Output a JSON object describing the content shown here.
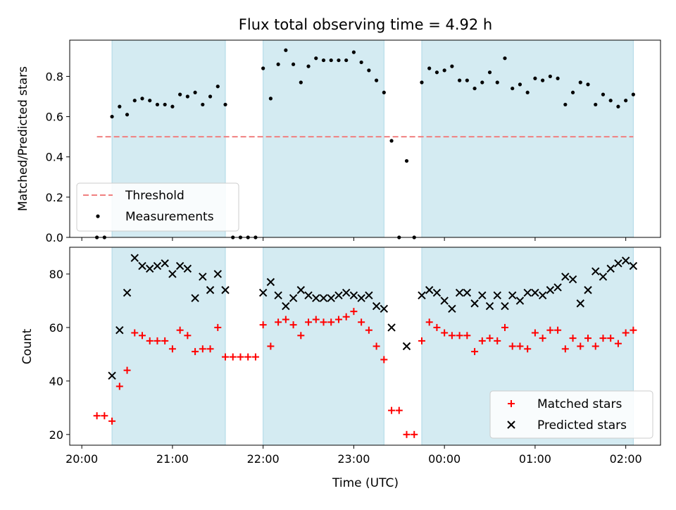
{
  "figure": {
    "title": "Flux total observing time = 4.92 h",
    "xlabel": "Time (UTC)",
    "x_tick_labels": [
      "20:00",
      "21:00",
      "22:00",
      "23:00",
      "00:00",
      "01:00",
      "02:00"
    ]
  },
  "colors": {
    "shade": "#add8e6",
    "threshold": "#f08080",
    "measurement": "#000000",
    "matched": "#ff0000",
    "predicted": "#000000"
  },
  "chart_data": [
    {
      "type": "scatter",
      "ylabel": "Matched/Predicted stars",
      "xlim": [
        "19:52",
        "02:23"
      ],
      "ylim": [
        0,
        0.98
      ],
      "y_ticks": [
        "0.0",
        "0.2",
        "0.4",
        "0.6",
        "0.8"
      ],
      "legend_position": "lower-left",
      "shaded_intervals": [
        [
          "20:20",
          "21:35"
        ],
        [
          "22:00",
          "23:20"
        ],
        [
          "23:45",
          "02:05"
        ]
      ],
      "threshold": {
        "name": "Threshold",
        "value": 0.5,
        "x_range": [
          "20:10",
          "02:05"
        ]
      },
      "series": [
        {
          "name": "Measurements",
          "x": [
            "20:10",
            "20:15",
            "20:20",
            "20:25",
            "20:30",
            "20:35",
            "20:40",
            "20:45",
            "20:50",
            "20:55",
            "21:00",
            "21:05",
            "21:10",
            "21:15",
            "21:20",
            "21:25",
            "21:30",
            "21:35",
            "21:40",
            "21:45",
            "21:50",
            "21:55",
            "22:00",
            "22:05",
            "22:10",
            "22:15",
            "22:20",
            "22:25",
            "22:30",
            "22:35",
            "22:40",
            "22:45",
            "22:50",
            "22:55",
            "23:00",
            "23:05",
            "23:10",
            "23:15",
            "23:20",
            "23:25",
            "23:30",
            "23:35",
            "23:40",
            "23:45",
            "23:50",
            "23:55",
            "00:00",
            "00:05",
            "00:10",
            "00:15",
            "00:20",
            "00:25",
            "00:30",
            "00:35",
            "00:40",
            "00:45",
            "00:50",
            "00:55",
            "01:00",
            "01:05",
            "01:10",
            "01:15",
            "01:20",
            "01:25",
            "01:30",
            "01:35",
            "01:40",
            "01:45",
            "01:50",
            "01:55",
            "02:00",
            "02:05"
          ],
          "y": [
            0,
            0,
            0.6,
            0.65,
            0.61,
            0.68,
            0.69,
            0.68,
            0.66,
            0.66,
            0.65,
            0.71,
            0.7,
            0.72,
            0.66,
            0.7,
            0.75,
            0.66,
            0,
            0,
            0,
            0,
            0.84,
            0.69,
            0.86,
            0.93,
            0.86,
            0.77,
            0.85,
            0.89,
            0.88,
            0.88,
            0.88,
            0.88,
            0.92,
            0.87,
            0.83,
            0.78,
            0.72,
            0.48,
            0,
            0.38,
            0,
            0.77,
            0.84,
            0.82,
            0.83,
            0.85,
            0.78,
            0.78,
            0.74,
            0.77,
            0.82,
            0.77,
            0.89,
            0.74,
            0.76,
            0.72,
            0.79,
            0.78,
            0.8,
            0.79,
            0.66,
            0.72,
            0.77,
            0.76,
            0.66,
            0.71,
            0.68,
            0.65,
            0.68,
            0.71
          ]
        }
      ]
    },
    {
      "type": "scatter",
      "ylabel": "Count",
      "xlim": [
        "19:52",
        "02:23"
      ],
      "ylim": [
        16,
        90
      ],
      "y_ticks": [
        "20",
        "40",
        "60",
        "80"
      ],
      "legend_position": "lower-right",
      "shaded_intervals": [
        [
          "20:20",
          "21:35"
        ],
        [
          "22:00",
          "23:20"
        ],
        [
          "23:45",
          "02:05"
        ]
      ],
      "series": [
        {
          "name": "Matched stars",
          "marker": "plus",
          "x": [
            "20:10",
            "20:15",
            "20:20",
            "20:25",
            "20:30",
            "20:35",
            "20:40",
            "20:45",
            "20:50",
            "20:55",
            "21:00",
            "21:05",
            "21:10",
            "21:15",
            "21:20",
            "21:25",
            "21:30",
            "21:35",
            "21:40",
            "21:45",
            "21:50",
            "21:55",
            "22:00",
            "22:05",
            "22:10",
            "22:15",
            "22:20",
            "22:25",
            "22:30",
            "22:35",
            "22:40",
            "22:45",
            "22:50",
            "22:55",
            "23:00",
            "23:05",
            "23:10",
            "23:15",
            "23:20",
            "23:25",
            "23:30",
            "23:35",
            "23:40",
            "23:45",
            "23:50",
            "23:55",
            "00:00",
            "00:05",
            "00:10",
            "00:15",
            "00:20",
            "00:25",
            "00:30",
            "00:35",
            "00:40",
            "00:45",
            "00:50",
            "00:55",
            "01:00",
            "01:05",
            "01:10",
            "01:15",
            "01:20",
            "01:25",
            "01:30",
            "01:35",
            "01:40",
            "01:45",
            "01:50",
            "01:55",
            "02:00",
            "02:05"
          ],
          "y": [
            27,
            27,
            25,
            38,
            44,
            58,
            57,
            55,
            55,
            55,
            52,
            59,
            57,
            51,
            52,
            52,
            60,
            49,
            49,
            49,
            49,
            49,
            61,
            53,
            62,
            63,
            61,
            57,
            62,
            63,
            62,
            62,
            63,
            64,
            66,
            62,
            59,
            53,
            48,
            29,
            29,
            20,
            20,
            55,
            62,
            60,
            58,
            57,
            57,
            57,
            51,
            55,
            56,
            55,
            60,
            53,
            53,
            52,
            58,
            56,
            59,
            59,
            52,
            56,
            53,
            56,
            53,
            56,
            56,
            54,
            58,
            59
          ]
        },
        {
          "name": "Predicted stars",
          "marker": "x",
          "x": [
            "20:20",
            "20:25",
            "20:30",
            "20:35",
            "20:40",
            "20:45",
            "20:50",
            "20:55",
            "21:00",
            "21:05",
            "21:10",
            "21:15",
            "21:20",
            "21:25",
            "21:30",
            "21:35",
            "22:00",
            "22:05",
            "22:10",
            "22:15",
            "22:20",
            "22:25",
            "22:30",
            "22:35",
            "22:40",
            "22:45",
            "22:50",
            "22:55",
            "23:00",
            "23:05",
            "23:10",
            "23:15",
            "23:20",
            "23:25",
            "23:35",
            "23:45",
            "23:50",
            "23:55",
            "00:00",
            "00:05",
            "00:10",
            "00:15",
            "00:20",
            "00:25",
            "00:30",
            "00:35",
            "00:40",
            "00:45",
            "00:50",
            "00:55",
            "01:00",
            "01:05",
            "01:10",
            "01:15",
            "01:20",
            "01:25",
            "01:30",
            "01:35",
            "01:40",
            "01:45",
            "01:50",
            "01:55",
            "02:00",
            "02:05"
          ],
          "y": [
            42,
            59,
            73,
            86,
            83,
            82,
            83,
            84,
            80,
            83,
            82,
            71,
            79,
            74,
            80,
            74,
            73,
            77,
            72,
            68,
            71,
            74,
            72,
            71,
            71,
            71,
            72,
            73,
            72,
            71,
            72,
            68,
            67,
            60,
            53,
            72,
            74,
            73,
            70,
            67,
            73,
            73,
            69,
            72,
            68,
            72,
            68,
            72,
            70,
            73,
            73,
            72,
            74,
            75,
            79,
            78,
            69,
            74,
            81,
            79,
            82,
            84,
            85,
            83
          ]
        }
      ]
    }
  ]
}
